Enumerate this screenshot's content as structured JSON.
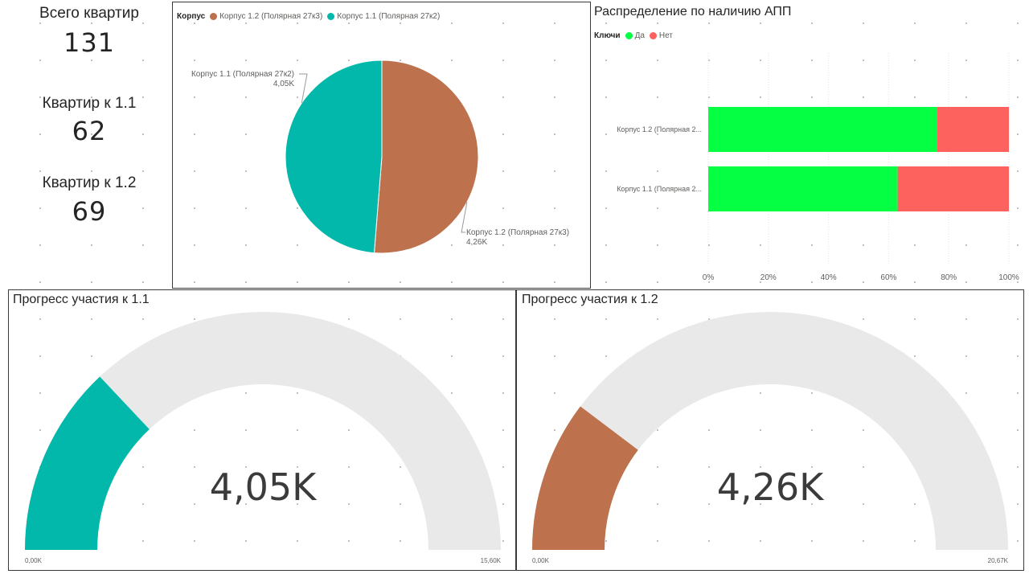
{
  "kpis": [
    {
      "label": "Всего квартир",
      "value": "131"
    },
    {
      "label": "Квартир к 1.1",
      "value": "62"
    },
    {
      "label": "Квартир к 1.2",
      "value": "69"
    }
  ],
  "pie": {
    "legend_title": "Корпус",
    "colors": {
      "k12": "#bd714c",
      "k11": "#02b8ab"
    },
    "chart_data": {
      "type": "pie",
      "legend": [
        "Корпус 1.2 (Полярная 27к3)",
        "Корпус 1.1 (Полярная 27к2)"
      ],
      "slices": [
        {
          "name": "Корпус 1.2 (Полярная 27к3)",
          "value": 4260,
          "label": "4,26K"
        },
        {
          "name": "Корпус 1.1 (Полярная 27к2)",
          "value": 4050,
          "label": "4,05K"
        }
      ]
    }
  },
  "bar": {
    "title": "Распределение по наличию АПП",
    "legend_title": "Ключи",
    "colors": {
      "yes": "#05ff42",
      "no": "#fd625e"
    },
    "chart_data": {
      "type": "bar",
      "orientation": "horizontal",
      "stacked": "100%",
      "categories": [
        "Корпус 1.2 (Полярная 2...",
        "Корпус 1.1 (Полярная 2..."
      ],
      "series": [
        {
          "name": "Да",
          "values": [
            76,
            63
          ]
        },
        {
          "name": "Нет",
          "values": [
            24,
            37
          ]
        }
      ],
      "xlim": [
        0,
        100
      ],
      "ticks": [
        "0%",
        "20%",
        "40%",
        "60%",
        "80%",
        "100%"
      ],
      "grid": true,
      "legend_position": "top-left"
    }
  },
  "gauge1": {
    "title": "Прогресс участия к 1.1",
    "value_label": "4,05K",
    "min_label": "0,00K",
    "max_label": "15,60K",
    "color": "#02b8ab",
    "track": "#e9e9e9",
    "chart_data": {
      "type": "gauge",
      "value": 4050,
      "min": 0,
      "max": 15600
    }
  },
  "gauge2": {
    "title": "Прогресс участия к 1.2",
    "value_label": "4,26K",
    "min_label": "0,00K",
    "max_label": "20,67K",
    "color": "#bd714c",
    "track": "#e9e9e9",
    "chart_data": {
      "type": "gauge",
      "value": 4260,
      "min": 0,
      "max": 20670
    }
  }
}
